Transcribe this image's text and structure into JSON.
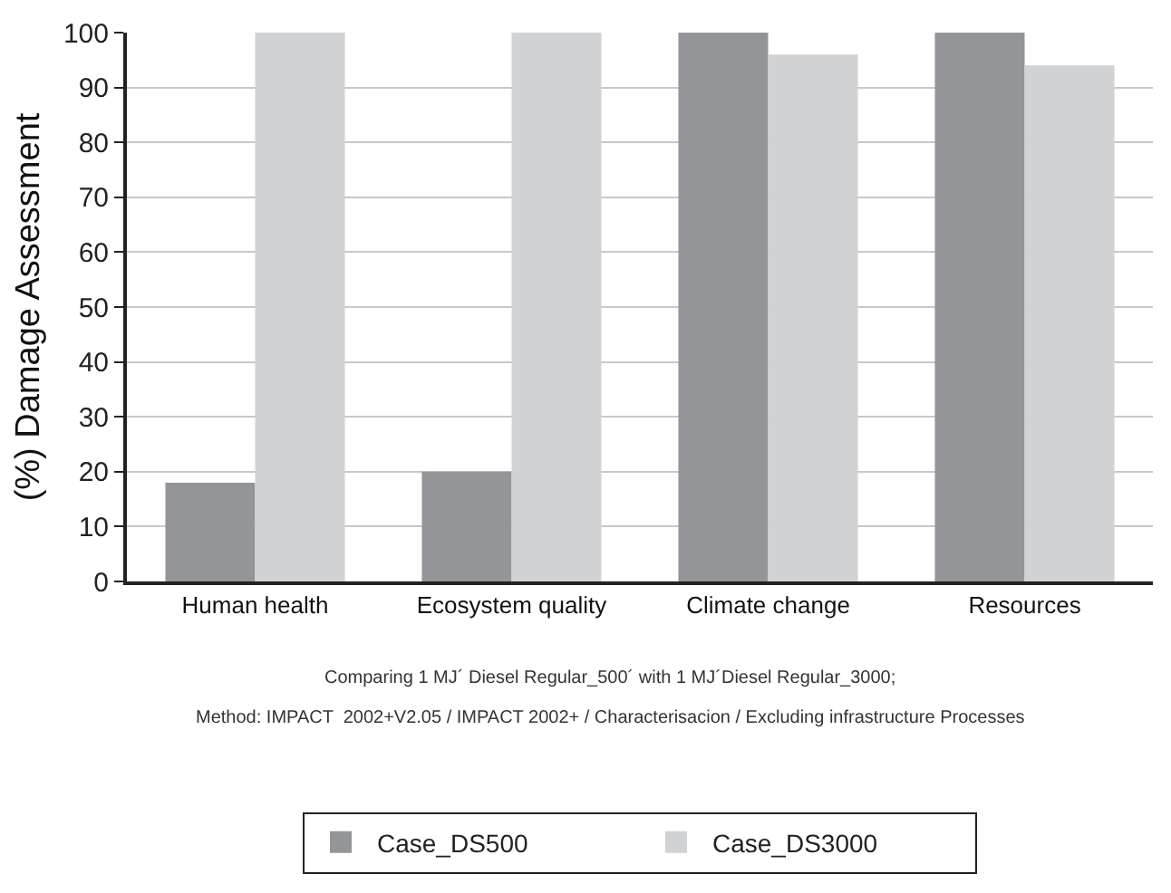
{
  "chart_data": {
    "type": "bar",
    "ylabel": "(%) Damage Assessment",
    "categories": [
      "Human health",
      "Ecosystem quality",
      "Climate change",
      "Resources"
    ],
    "series": [
      {
        "name": "Case_DS500",
        "color": "#939598",
        "values": [
          18,
          20,
          100,
          100
        ]
      },
      {
        "name": "Case_DS3000",
        "color": "#d1d2d4",
        "values": [
          100,
          100,
          96,
          94
        ]
      }
    ],
    "ylim": [
      0,
      100
    ],
    "yticks": [
      0,
      10,
      20,
      30,
      40,
      50,
      60,
      70,
      80,
      90,
      100
    ],
    "grid": "y",
    "legend": "bottom",
    "annotations": [
      "Comparing 1 MJ´ Diesel Regular_500´ with 1 MJ´Diesel Regular_3000;",
      "Method: IMPACT  2002+V2.05 / IMPACT 2002+ / Characterisacion / Excluding infrastructure Processes"
    ]
  }
}
